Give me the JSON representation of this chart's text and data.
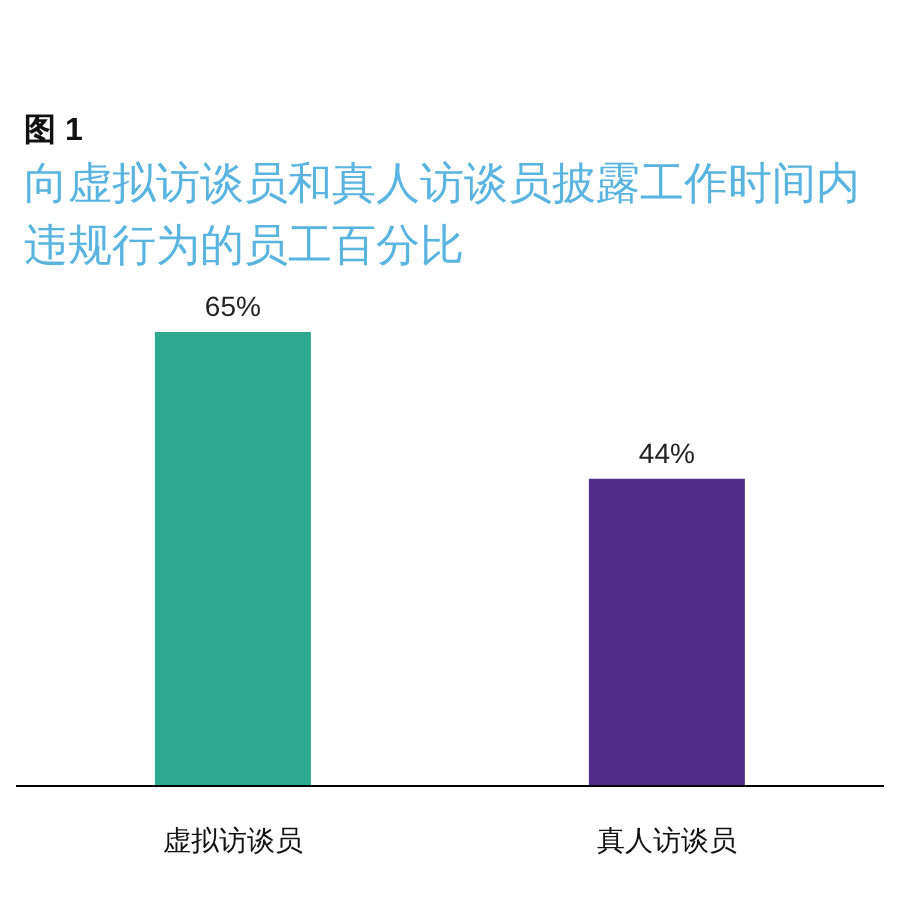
{
  "chart_data": {
    "type": "bar",
    "title": "图 1",
    "subtitle": "向虚拟访谈员和真人访谈员披露工作时间内违规行为的员工百分比",
    "categories": [
      "虚拟访谈员",
      "真人访谈员"
    ],
    "values": [
      65,
      44
    ],
    "colors": [
      "#2ca98f",
      "#532d8c"
    ],
    "value_labels": [
      "65%",
      "44%"
    ],
    "grid": false,
    "legend": false
  }
}
